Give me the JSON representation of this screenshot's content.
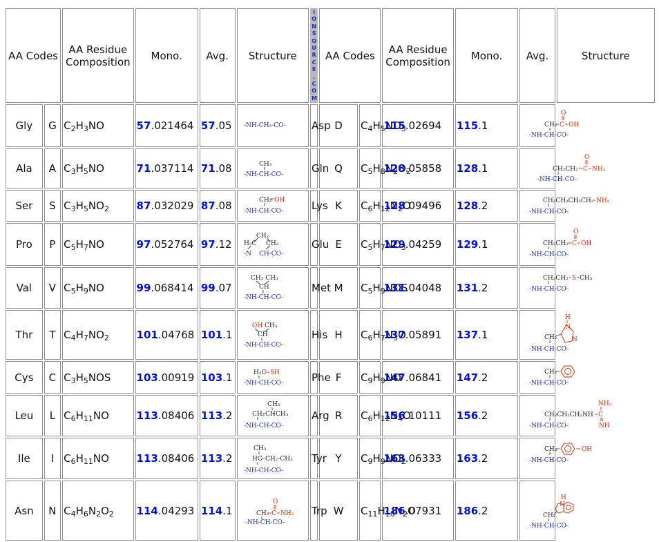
{
  "headers": {
    "codes": "AA Codes",
    "residue_line1": "AA Residue",
    "residue_line2": "Composition",
    "mono": "Mono.",
    "avg": "Avg.",
    "structure": "Structure"
  },
  "vertical_text": [
    "I",
    "O",
    "N",
    "S",
    "O",
    "U",
    "R",
    "C",
    "E",
    ".",
    "C",
    "O",
    "M"
  ],
  "left": [
    {
      "name": "Gly",
      "code": "G",
      "comp": [
        "C",
        "2",
        "H",
        "3",
        "NO"
      ],
      "mono_int": "57",
      "mono_frac": ".021464",
      "avg_int": "57",
      "avg_frac": ".05"
    },
    {
      "name": "Ala",
      "code": "A",
      "comp": [
        "C",
        "3",
        "H",
        "5",
        "NO"
      ],
      "mono_int": "71",
      "mono_frac": ".037114",
      "avg_int": "71",
      "avg_frac": ".08"
    },
    {
      "name": "Ser",
      "code": "S",
      "comp": [
        "C",
        "3",
        "H",
        "5",
        "NO",
        "2"
      ],
      "mono_int": "87",
      "mono_frac": ".032029",
      "avg_int": "87",
      "avg_frac": ".08"
    },
    {
      "name": "Pro",
      "code": "P",
      "comp": [
        "C",
        "5",
        "H",
        "7",
        "NO"
      ],
      "mono_int": "97",
      "mono_frac": ".052764",
      "avg_int": "97",
      "avg_frac": ".12"
    },
    {
      "name": "Val",
      "code": "V",
      "comp": [
        "C",
        "5",
        "H",
        "9",
        "NO"
      ],
      "mono_int": "99",
      "mono_frac": ".068414",
      "avg_int": "99",
      "avg_frac": ".07"
    },
    {
      "name": "Thr",
      "code": "T",
      "comp": [
        "C",
        "4",
        "H",
        "7",
        "NO",
        "2"
      ],
      "mono_int": "101",
      "mono_frac": ".04768",
      "avg_int": "101",
      "avg_frac": ".1"
    },
    {
      "name": "Cys",
      "code": "C",
      "comp": [
        "C",
        "3",
        "H",
        "5",
        "NOS"
      ],
      "mono_int": "103",
      "mono_frac": ".00919",
      "avg_int": "103",
      "avg_frac": ".1"
    },
    {
      "name": "Leu",
      "code": "L",
      "comp": [
        "C",
        "6",
        "H",
        "11",
        "NO"
      ],
      "mono_int": "113",
      "mono_frac": ".08406",
      "avg_int": "113",
      "avg_frac": ".2"
    },
    {
      "name": "Ile",
      "code": "I",
      "comp": [
        "C",
        "6",
        "H",
        "11",
        "NO"
      ],
      "mono_int": "113",
      "mono_frac": ".08406",
      "avg_int": "113",
      "avg_frac": ".2"
    },
    {
      "name": "Asn",
      "code": "N",
      "comp": [
        "C",
        "4",
        "H",
        "6",
        "N",
        "2",
        "O",
        "2"
      ],
      "mono_int": "114",
      "mono_frac": ".04293",
      "avg_int": "114",
      "avg_frac": ".1"
    }
  ],
  "right": [
    {
      "name": "Asp",
      "code": "D",
      "comp": [
        "C",
        "4",
        "H",
        "5",
        "NO",
        "3"
      ],
      "mono_int": "115",
      "mono_frac": ".02694",
      "avg_int": "115",
      "avg_frac": ".1"
    },
    {
      "name": "Gln",
      "code": "Q",
      "comp": [
        "C",
        "5",
        "H",
        "8",
        "N",
        "2",
        "O",
        "2"
      ],
      "mono_int": "128",
      "mono_frac": ".05858",
      "avg_int": "128",
      "avg_frac": ".1"
    },
    {
      "name": "Lys",
      "code": "K",
      "comp": [
        "C",
        "6",
        "H",
        "12",
        "N",
        "2",
        "O"
      ],
      "mono_int": "128",
      "mono_frac": ".09496",
      "avg_int": "128",
      "avg_frac": ".2"
    },
    {
      "name": "Glu",
      "code": "E",
      "comp": [
        "C",
        "5",
        "H",
        "7",
        "NO",
        "3"
      ],
      "mono_int": "129",
      "mono_frac": ".04259",
      "avg_int": "129",
      "avg_frac": ".1"
    },
    {
      "name": "Met",
      "code": "M",
      "comp": [
        "C",
        "5",
        "H",
        "9",
        "NOS"
      ],
      "mono_int": "131",
      "mono_frac": ".04048",
      "avg_int": "131",
      "avg_frac": ".2"
    },
    {
      "name": "His",
      "code": "H",
      "comp": [
        "C",
        "6",
        "H",
        "7",
        "N",
        "3",
        "O"
      ],
      "mono_int": "137",
      "mono_frac": ".05891",
      "avg_int": "137",
      "avg_frac": ".1"
    },
    {
      "name": "Phe",
      "code": "F",
      "comp": [
        "C",
        "9",
        "H",
        "9",
        "NO"
      ],
      "mono_int": "147",
      "mono_frac": ".06841",
      "avg_int": "147",
      "avg_frac": ".2"
    },
    {
      "name": "Arg",
      "code": "R",
      "comp": [
        "C",
        "6",
        "H",
        "12",
        "N",
        "4",
        "O"
      ],
      "mono_int": "156",
      "mono_frac": ".10111",
      "avg_int": "156",
      "avg_frac": ".2"
    },
    {
      "name": "Tyr",
      "code": "Y",
      "comp": [
        "C",
        "9",
        "H",
        "9",
        "NO",
        "2"
      ],
      "mono_int": "163",
      "mono_frac": ".06333",
      "avg_int": "163",
      "avg_frac": ".2"
    },
    {
      "name": "Trp",
      "code": "W",
      "comp": [
        "C",
        "11",
        "H",
        "10",
        "N",
        "2",
        "O"
      ],
      "mono_int": "186",
      "mono_frac": ".07931",
      "avg_int": "186",
      "avg_frac": ".2"
    }
  ],
  "structures": {
    "backbone": "-NH-CH-CO-",
    "backbone_gly": "-NH-CH₂-CO-",
    "ch2": "CH₂",
    "ch3": "CH₃",
    "ch": "CH",
    "hc": "HC",
    "oh": "OH",
    "sh": "SH",
    "s": "S",
    "o": "O",
    "nh2": "NH₂",
    "nh": "NH",
    "n": "N",
    "h": "H",
    "c": "C",
    "h2c": "H₂C",
    "ch2_ch3": "CH₂-CH₃",
    "pro_n": "-N",
    "pro_chco": "CH-CO-",
    "ch2ch2": "CH₂CH₂",
    "lys_chain": "CH₂CH₂CH₂CH₂",
    "arg_chain": "CH₂CH₂CH₂NH",
    "ch3_ch3": "CH₃ CH₃"
  },
  "colors": {
    "mass_blue": "#0010d8",
    "struct_blue": "#1a2ea8",
    "struct_red": "#cc2a00",
    "divider": "#b9b9b9"
  }
}
